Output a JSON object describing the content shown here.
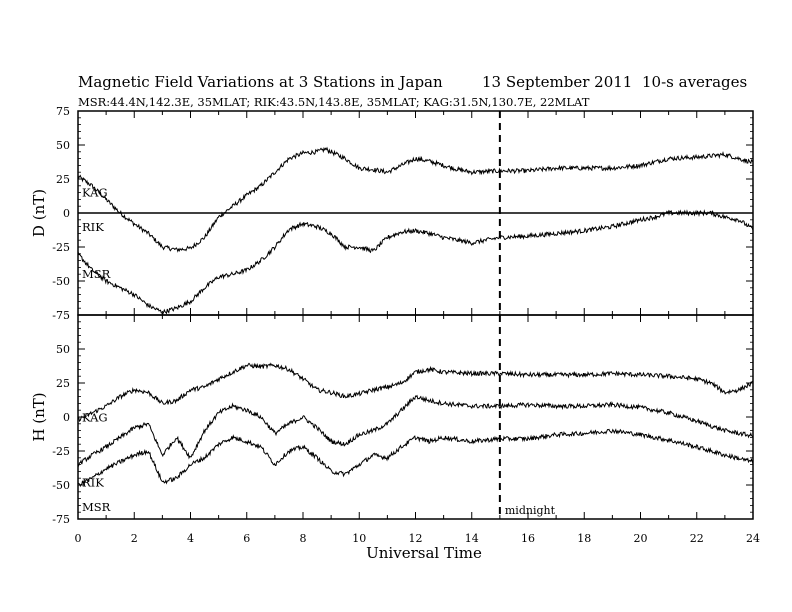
{
  "title": {
    "main": "Magnetic Field Variations at 3 Stations in Japan",
    "date": "13 September 2011",
    "averaging": "10-s averages",
    "stations": "MSR:44.4N,142.3E, 35MLAT;  RIK:43.5N,143.8E, 35MLAT;  KAG:31.5N,130.7E, 22MLAT"
  },
  "chart_data": [
    {
      "type": "line",
      "panel": "top",
      "ylabel": "D (nT)",
      "ylim": [
        -75,
        75
      ],
      "yticks": [
        75,
        50,
        25,
        0,
        -25,
        -50,
        -75
      ],
      "xlim": [
        0,
        24
      ],
      "zero_line": true,
      "series": [
        {
          "name": "KAG",
          "x": [
            0,
            0.5,
            1,
            1.5,
            2,
            2.5,
            3,
            3.5,
            4,
            4.5,
            5,
            5.5,
            6,
            6.5,
            7,
            7.5,
            8,
            8.5,
            8.8,
            9.5,
            10,
            10.5,
            11,
            11.5,
            12,
            12.5,
            13,
            13.5,
            14,
            15,
            16,
            17,
            18,
            19,
            20,
            21,
            22,
            23,
            24
          ],
          "y": [
            27,
            20,
            10,
            0,
            -8,
            -15,
            -25,
            -27,
            -26,
            -18,
            -3,
            5,
            13,
            20,
            30,
            40,
            44,
            45,
            47,
            40,
            33,
            32,
            30,
            35,
            40,
            38,
            35,
            32,
            30,
            31,
            31,
            33,
            33,
            33,
            35,
            40,
            41,
            43,
            37
          ]
        },
        {
          "name": "RIK",
          "x": [
            0,
            0.5,
            1,
            1.5,
            2,
            3,
            4,
            5,
            6,
            7,
            8,
            9,
            10,
            11,
            12,
            13,
            14,
            15,
            16,
            17,
            18,
            19,
            20,
            20.5,
            21,
            22,
            23,
            24
          ],
          "y": [
            0,
            0,
            0,
            0,
            0,
            0,
            0,
            0,
            0,
            0,
            0,
            0,
            0,
            0,
            0,
            0,
            0,
            0,
            0,
            0,
            0,
            0,
            0,
            0,
            0,
            0,
            0,
            0
          ]
        },
        {
          "name": "MSR",
          "x": [
            0,
            0.5,
            1,
            1.5,
            2,
            2.5,
            3,
            3.5,
            4,
            4.5,
            5,
            5.5,
            6,
            6.5,
            7,
            7.5,
            8,
            8.5,
            9,
            9.5,
            10,
            10.5,
            11,
            11.5,
            12,
            12.5,
            13,
            13.5,
            14,
            15,
            16,
            17,
            18,
            19,
            20,
            20.5,
            21,
            21.5,
            22,
            22.5,
            23,
            23.5,
            24
          ],
          "y": [
            -30,
            -42,
            -50,
            -55,
            -60,
            -68,
            -73,
            -70,
            -65,
            -55,
            -47,
            -45,
            -42,
            -35,
            -25,
            -12,
            -8,
            -10,
            -15,
            -25,
            -25,
            -28,
            -18,
            -14,
            -13,
            -15,
            -18,
            -20,
            -22,
            -18,
            -17,
            -15,
            -13,
            -10,
            -5,
            -3,
            0,
            0,
            0,
            0,
            -3,
            -5,
            -12
          ]
        }
      ]
    },
    {
      "type": "line",
      "panel": "bottom",
      "ylabel": "H (nT)",
      "ylim": [
        -75,
        75
      ],
      "yticks": [
        75,
        50,
        25,
        0,
        -25,
        -50,
        -75
      ],
      "xlim": [
        0,
        24
      ],
      "series": [
        {
          "name": "KAG",
          "x": [
            0,
            0.5,
            1,
            1.5,
            2,
            2.5,
            3,
            3.5,
            4,
            4.5,
            5,
            5.5,
            6,
            6.5,
            7,
            7.5,
            8,
            8.5,
            9,
            9.5,
            10,
            10.5,
            11,
            11.5,
            12,
            12.5,
            13,
            14,
            15,
            16,
            17,
            18,
            19,
            20,
            21,
            22,
            22.5,
            23,
            23.5,
            24
          ],
          "y": [
            -2,
            3,
            8,
            15,
            20,
            18,
            10,
            12,
            20,
            22,
            28,
            33,
            38,
            37,
            38,
            35,
            28,
            20,
            18,
            15,
            17,
            20,
            22,
            25,
            33,
            35,
            33,
            32,
            32,
            31,
            31,
            31,
            32,
            31,
            30,
            28,
            25,
            18,
            20,
            25
          ]
        },
        {
          "name": "RIK",
          "x": [
            0,
            0.5,
            1,
            1.5,
            2,
            2.5,
            3,
            3.5,
            4,
            4.5,
            5,
            5.5,
            6,
            6.5,
            7,
            7.5,
            8,
            8.5,
            9,
            9.5,
            10,
            10.5,
            11,
            11.5,
            12,
            12.5,
            13,
            14,
            15,
            16,
            17,
            18,
            19,
            20,
            21,
            22,
            23,
            24
          ],
          "y": [
            -35,
            -28,
            -22,
            -15,
            -8,
            -5,
            -28,
            -15,
            -30,
            -10,
            3,
            8,
            5,
            0,
            -12,
            -5,
            0,
            -8,
            -18,
            -20,
            -13,
            -10,
            -5,
            5,
            15,
            12,
            10,
            8,
            8,
            9,
            8,
            8,
            9,
            7,
            3,
            -3,
            -10,
            -14
          ]
        },
        {
          "name": "MSR",
          "x": [
            0,
            0.5,
            1,
            1.5,
            2,
            2.5,
            3,
            3.5,
            4,
            4.5,
            5,
            5.5,
            6,
            6.5,
            7,
            7.5,
            8,
            8.5,
            9,
            9.5,
            10,
            10.5,
            11,
            11.5,
            12,
            12.5,
            13,
            14,
            15,
            16,
            17,
            18,
            19,
            20,
            21,
            22,
            23,
            24
          ],
          "y": [
            -50,
            -45,
            -38,
            -33,
            -28,
            -25,
            -48,
            -45,
            -35,
            -30,
            -20,
            -15,
            -18,
            -22,
            -35,
            -25,
            -22,
            -30,
            -40,
            -42,
            -35,
            -28,
            -30,
            -22,
            -15,
            -18,
            -15,
            -18,
            -16,
            -16,
            -13,
            -12,
            -10,
            -13,
            -17,
            -22,
            -28,
            -33
          ]
        }
      ]
    }
  ],
  "x_axis": {
    "label": "Universal Time",
    "ticks": [
      0,
      2,
      4,
      6,
      8,
      10,
      12,
      14,
      16,
      18,
      20,
      22,
      24
    ]
  },
  "annotation": {
    "midnight_ut": 15,
    "label": "midnight"
  }
}
